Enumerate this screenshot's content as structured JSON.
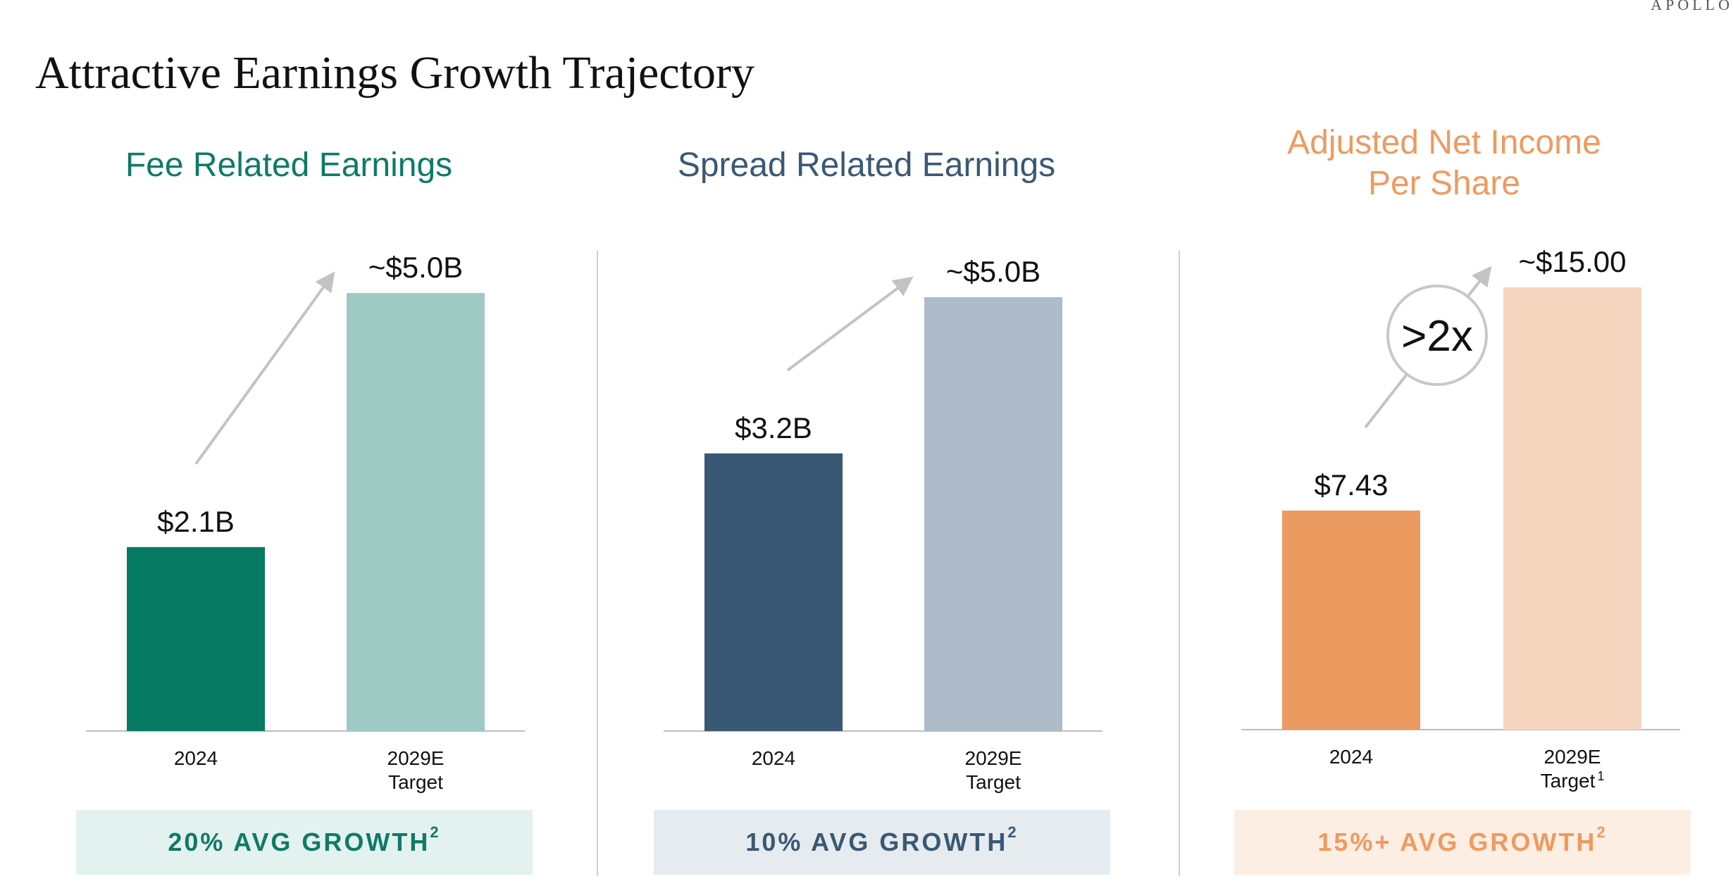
{
  "header": {
    "title": "Attractive Earnings Growth Trajectory",
    "brand": "APOLLO"
  },
  "colors": {
    "fre_dark": "#077a64",
    "fre_light": "#9ecac3",
    "fre_title": "#0f7a67",
    "fre_box_bg": "#e4f2ef",
    "sre_dark": "#385874",
    "sre_light": "#adbac8",
    "sre_title": "#3a5874",
    "sre_box_bg": "#e6ebf0",
    "anips_dark": "#eb9a60",
    "anips_light": "#f6d5bf",
    "anips_title": "#ef9a5e",
    "anips_box_bg": "#fdeee4",
    "axis": "#bdbdbd",
    "arrow": "#c3c3c3"
  },
  "chart_data": [
    {
      "type": "bar",
      "title": "Fee Related Earnings",
      "categories": [
        "2024",
        "2029E Target"
      ],
      "values": [
        2.1,
        5.0
      ],
      "value_labels": [
        "$2.1B",
        "~$5.0B"
      ],
      "unit": "$B",
      "ylim": [
        0,
        5.0
      ],
      "growth_label": "20% AVG GROWTH",
      "growth_footnote": "2"
    },
    {
      "type": "bar",
      "title": "Spread Related Earnings",
      "categories": [
        "2024",
        "2029E Target"
      ],
      "values": [
        3.2,
        5.0
      ],
      "value_labels": [
        "$3.2B",
        "~$5.0B"
      ],
      "unit": "$B",
      "ylim": [
        0,
        5.0
      ],
      "growth_label": "10% AVG GROWTH",
      "growth_footnote": "2"
    },
    {
      "type": "bar",
      "title": "Adjusted Net Income Per Share",
      "categories": [
        "2024",
        "2029E Target"
      ],
      "values": [
        7.43,
        15.0
      ],
      "value_labels": [
        "$7.43",
        "~$15.00"
      ],
      "unit": "$",
      "ylim": [
        0,
        15.0
      ],
      "badge": ">2x",
      "target_footnote": "1",
      "growth_label": "15%+ AVG GROWTH",
      "growth_footnote": "2"
    }
  ],
  "panels": [
    {
      "title_lines": [
        "Fee Related Earnings"
      ],
      "cat0": "2024",
      "cat1_line1": "2029E",
      "cat1_line2": "Target",
      "growth": "20% AVG GROWTH",
      "growth_sup": "2"
    },
    {
      "title_lines": [
        "Spread Related Earnings"
      ],
      "cat0": "2024",
      "cat1_line1": "2029E",
      "cat1_line2": "Target",
      "growth": "10% AVG GROWTH",
      "growth_sup": "2"
    },
    {
      "title_lines": [
        "Adjusted Net Income",
        "Per Share"
      ],
      "cat0": "2024",
      "cat1_line1": "2029E",
      "cat1_line2": "Target",
      "cat1_sup": "1",
      "growth": "15%+ AVG GROWTH",
      "growth_sup": "2",
      "badge": ">2x"
    }
  ]
}
